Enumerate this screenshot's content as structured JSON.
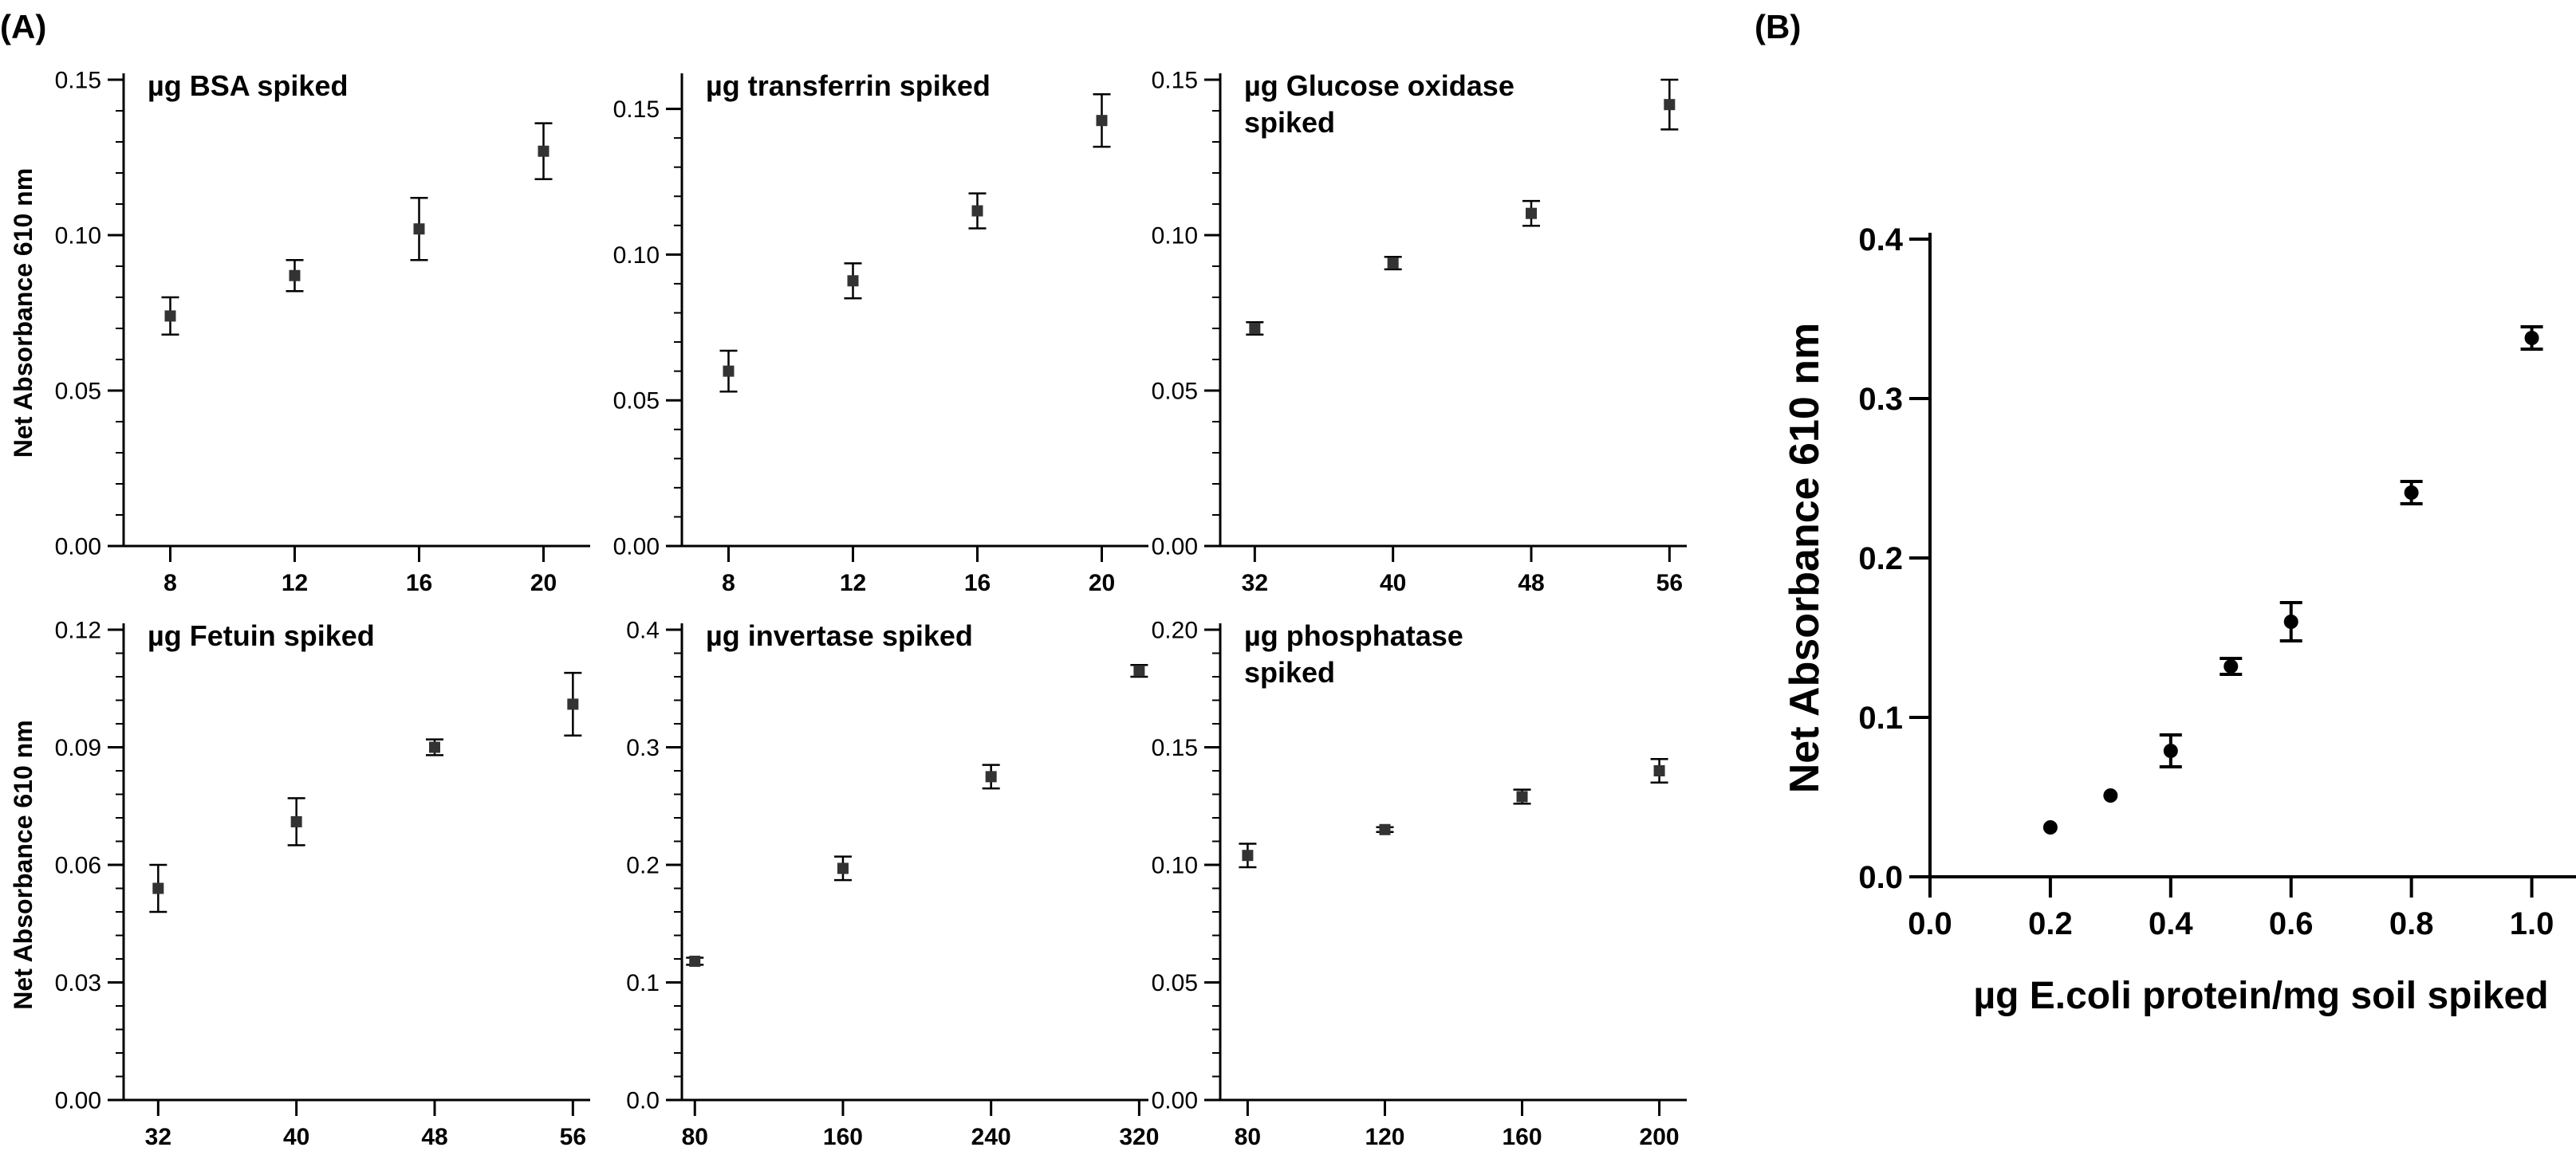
{
  "figure": {
    "label_a": "(A)",
    "label_b": "(B)",
    "colors": {
      "axis": "#000000",
      "marker": "#333333",
      "background": "#ffffff"
    }
  },
  "chart_data": [
    {
      "type": "scatter",
      "panel": "A",
      "title": "µg BSA spiked",
      "xlabel": "",
      "ylabel": "Net Absorbance 610 nm",
      "xlim": [
        6.5,
        21.5
      ],
      "ylim": [
        0,
        0.15
      ],
      "xticks": [
        8,
        12,
        16,
        20
      ],
      "xtick_labels": [
        "8",
        "12",
        "16",
        "20"
      ],
      "yticks": [
        0,
        0.05,
        0.1,
        0.15
      ],
      "ytick_labels": [
        "0.00",
        "0.05",
        "0.10",
        "0.15"
      ],
      "series": [
        {
          "x": [
            8,
            12,
            16,
            20
          ],
          "y": [
            0.074,
            0.087,
            0.102,
            0.127
          ],
          "err": [
            0.006,
            0.005,
            0.01,
            0.009
          ]
        }
      ]
    },
    {
      "type": "scatter",
      "panel": "A",
      "title": "µg transferrin spiked",
      "xlabel": "",
      "ylabel": "",
      "xlim": [
        6.5,
        21.5
      ],
      "ylim": [
        0,
        0.16
      ],
      "xticks": [
        8,
        12,
        16,
        20
      ],
      "xtick_labels": [
        "8",
        "12",
        "16",
        "20"
      ],
      "yticks": [
        0,
        0.05,
        0.1,
        0.15
      ],
      "ytick_labels": [
        "0.00",
        "0.05",
        "0.10",
        "0.15"
      ],
      "series": [
        {
          "x": [
            8,
            12,
            16,
            20
          ],
          "y": [
            0.06,
            0.091,
            0.115,
            0.146
          ],
          "err": [
            0.007,
            0.006,
            0.006,
            0.009
          ]
        }
      ]
    },
    {
      "type": "scatter",
      "panel": "A",
      "title": "µg Glucose oxidase spiked",
      "title_lines": [
        "µg Glucose oxidase",
        "spiked"
      ],
      "xlabel": "",
      "ylabel": "",
      "xlim": [
        30,
        57
      ],
      "ylim": [
        0,
        0.15
      ],
      "xticks": [
        32,
        40,
        48,
        56
      ],
      "xtick_labels": [
        "32",
        "40",
        "48",
        "56"
      ],
      "yticks": [
        0,
        0.05,
        0.1,
        0.15
      ],
      "ytick_labels": [
        "0.00",
        "0.05",
        "0.10",
        "0.15"
      ],
      "series": [
        {
          "x": [
            32,
            40,
            48,
            56
          ],
          "y": [
            0.07,
            0.091,
            0.107,
            0.142
          ],
          "err": [
            0.002,
            0.002,
            0.004,
            0.008
          ]
        }
      ]
    },
    {
      "type": "scatter",
      "panel": "A",
      "title": "µg Fetuin spiked",
      "xlabel": "",
      "ylabel": "Net Absorbance 610 nm",
      "xlim": [
        30,
        57
      ],
      "ylim": [
        0,
        0.12
      ],
      "xticks": [
        32,
        40,
        48,
        56
      ],
      "xtick_labels": [
        "32",
        "40",
        "48",
        "56"
      ],
      "yticks": [
        0,
        0.03,
        0.06,
        0.09,
        0.12
      ],
      "ytick_labels": [
        "0.00",
        "0.03",
        "0.06",
        "0.09",
        "0.12"
      ],
      "series": [
        {
          "x": [
            32,
            40,
            48,
            56
          ],
          "y": [
            0.054,
            0.071,
            0.09,
            0.101
          ],
          "err": [
            0.006,
            0.006,
            0.002,
            0.008
          ]
        }
      ]
    },
    {
      "type": "scatter",
      "panel": "A",
      "title": "µg invertase spiked",
      "xlabel": "",
      "ylabel": "",
      "xlim": [
        73,
        325
      ],
      "ylim": [
        0,
        0.4
      ],
      "xticks": [
        80,
        160,
        240,
        320
      ],
      "xtick_labels": [
        "80",
        "160",
        "240",
        "320"
      ],
      "yticks": [
        0,
        0.1,
        0.2,
        0.3,
        0.4
      ],
      "ytick_labels": [
        "0.0",
        "0.1",
        "0.2",
        "0.3",
        "0.4"
      ],
      "series": [
        {
          "x": [
            80,
            160,
            240,
            320
          ],
          "y": [
            0.118,
            0.197,
            0.275,
            0.365
          ],
          "err": [
            0.003,
            0.01,
            0.01,
            0.005
          ]
        }
      ]
    },
    {
      "type": "scatter",
      "panel": "A",
      "title": "µg phosphatase spiked",
      "title_lines": [
        "µg phosphatase",
        "spiked"
      ],
      "xlabel": "",
      "ylabel": "",
      "xlim": [
        72,
        208
      ],
      "ylim": [
        0,
        0.2
      ],
      "xticks": [
        80,
        120,
        160,
        200
      ],
      "xtick_labels": [
        "80",
        "120",
        "160",
        "200"
      ],
      "yticks": [
        0,
        0.05,
        0.1,
        0.15,
        0.2
      ],
      "ytick_labels": [
        "0.00",
        "0.05",
        "0.10",
        "0.15",
        "0.20"
      ],
      "series": [
        {
          "x": [
            80,
            120,
            160,
            200
          ],
          "y": [
            0.104,
            0.115,
            0.129,
            0.14
          ],
          "err": [
            0.005,
            0.001,
            0.003,
            0.005
          ]
        }
      ]
    },
    {
      "type": "scatter",
      "panel": "B",
      "title": "",
      "xlabel": "µg E.coli protein/mg soil spiked",
      "ylabel": "Net Absorbance 610 nm",
      "xlim": [
        0,
        1.1
      ],
      "ylim": [
        0,
        0.4
      ],
      "xticks": [
        0,
        0.2,
        0.4,
        0.6,
        0.8,
        1.0
      ],
      "xtick_labels": [
        "0.0",
        "0.2",
        "0.4",
        "0.6",
        "0.8",
        "1.0"
      ],
      "yticks": [
        0,
        0.1,
        0.2,
        0.3,
        0.4
      ],
      "ytick_labels": [
        "0.0",
        "0.1",
        "0.2",
        "0.3",
        "0.4"
      ],
      "series": [
        {
          "x": [
            0.2,
            0.3,
            0.4,
            0.5,
            0.6,
            0.8,
            1.0
          ],
          "y": [
            0.031,
            0.051,
            0.079,
            0.132,
            0.16,
            0.241,
            0.338
          ],
          "err": [
            0,
            0,
            0.01,
            0.005,
            0.012,
            0.007,
            0.007
          ]
        }
      ]
    }
  ]
}
